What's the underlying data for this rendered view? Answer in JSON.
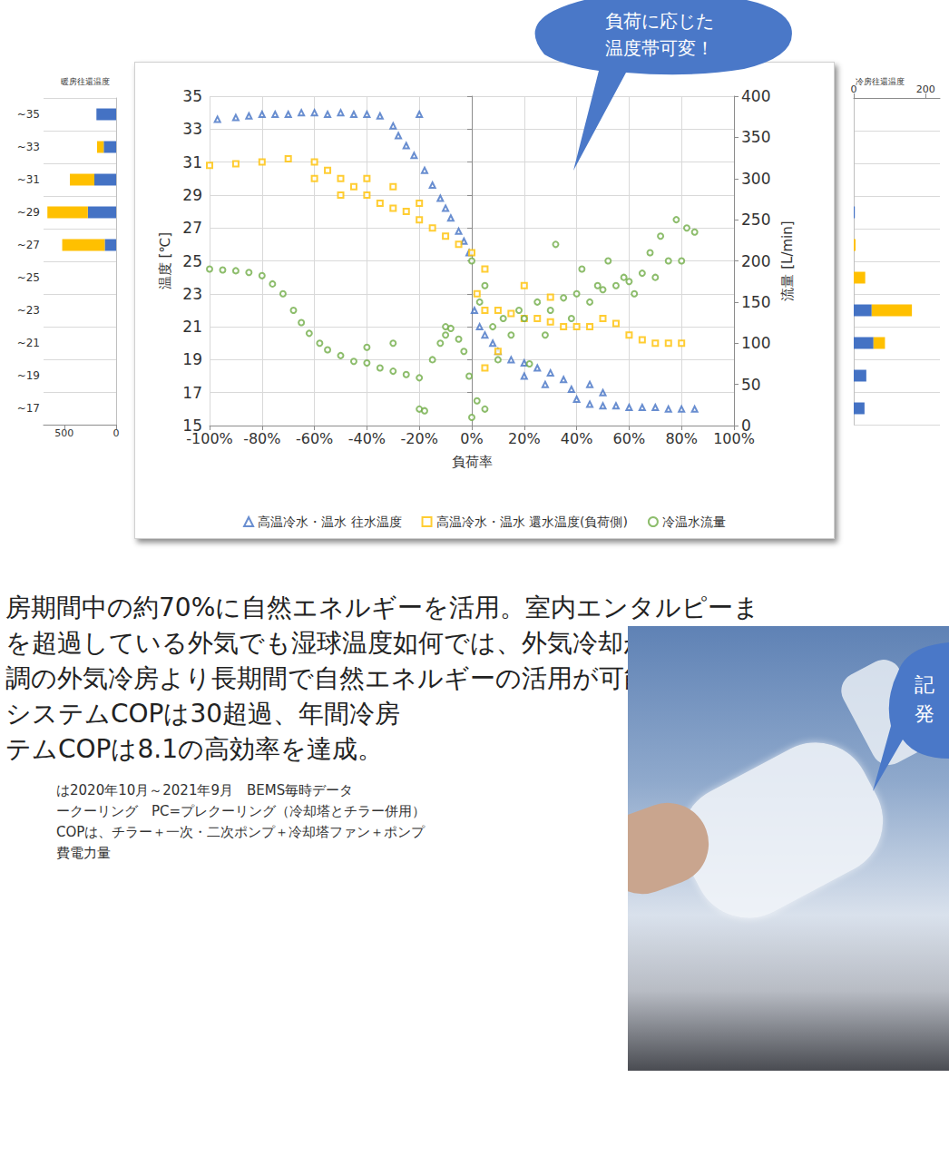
{
  "chart_data": [
    {
      "type": "scatter",
      "xlabel": "負荷率",
      "ylabel": "温度 [℃]",
      "y2label": "流量 [L/min]",
      "xlim": [
        -100,
        100
      ],
      "xticks": [
        {
          "value": -100,
          "label": "-100%"
        },
        {
          "value": -80,
          "label": "-80%"
        },
        {
          "value": -60,
          "label": "-60%"
        },
        {
          "value": -40,
          "label": "-40%"
        },
        {
          "value": -20,
          "label": "-20%"
        },
        {
          "value": 0,
          "label": "0%"
        },
        {
          "value": 20,
          "label": "20%"
        },
        {
          "value": 40,
          "label": "40%"
        },
        {
          "value": 60,
          "label": "60%"
        },
        {
          "value": 80,
          "label": "80%"
        },
        {
          "value": 100,
          "label": "100%"
        }
      ],
      "ylim": [
        15,
        35
      ],
      "yticks": [
        15,
        17,
        19,
        21,
        23,
        25,
        27,
        29,
        31,
        33,
        35
      ],
      "y2lim": [
        0,
        400
      ],
      "y2ticks": [
        0,
        50,
        100,
        150,
        200,
        250,
        300,
        350,
        400
      ],
      "grid": true,
      "legend": "bottom",
      "series": [
        {
          "name": "高温冷水・温水 往水温度",
          "color": "#4472c4",
          "marker": "triangle",
          "values": [
            [
              -97,
              33.6
            ],
            [
              -90,
              33.7
            ],
            [
              -85,
              33.8
            ],
            [
              -80,
              33.9
            ],
            [
              -75,
              33.9
            ],
            [
              -70,
              33.9
            ],
            [
              -65,
              34
            ],
            [
              -60,
              34
            ],
            [
              -55,
              33.9
            ],
            [
              -50,
              34
            ],
            [
              -45,
              33.9
            ],
            [
              -40,
              33.9
            ],
            [
              -35,
              33.8
            ],
            [
              -30,
              33.2
            ],
            [
              -28,
              32.6
            ],
            [
              -25,
              32
            ],
            [
              -22,
              31.4
            ],
            [
              -20,
              33.9
            ],
            [
              -18,
              30.5
            ],
            [
              -15,
              29.6
            ],
            [
              -12,
              28.8
            ],
            [
              -10,
              28.2
            ],
            [
              -8,
              27.6
            ],
            [
              -5,
              26.8
            ],
            [
              -3,
              26.2
            ],
            [
              -1,
              25.5
            ],
            [
              1,
              22
            ],
            [
              3,
              21
            ],
            [
              5,
              20.5
            ],
            [
              8,
              20
            ],
            [
              10,
              19.5
            ],
            [
              15,
              19
            ],
            [
              20,
              18.8
            ],
            [
              20,
              18
            ],
            [
              25,
              18.5
            ],
            [
              28,
              17.5
            ],
            [
              30,
              18.2
            ],
            [
              35,
              17.8
            ],
            [
              38,
              17.2
            ],
            [
              40,
              16.6
            ],
            [
              45,
              16.3
            ],
            [
              45,
              17.5
            ],
            [
              50,
              16.2
            ],
            [
              50,
              17
            ],
            [
              55,
              16.2
            ],
            [
              60,
              16.1
            ],
            [
              65,
              16.1
            ],
            [
              70,
              16.1
            ],
            [
              75,
              16
            ],
            [
              80,
              16
            ],
            [
              85,
              16
            ]
          ]
        },
        {
          "name": "高温冷水・温水 還水温度(負荷側)",
          "color": "#ffc000",
          "marker": "square",
          "values": [
            [
              -100,
              30.8
            ],
            [
              -90,
              30.9
            ],
            [
              -80,
              31
            ],
            [
              -70,
              31.2
            ],
            [
              -60,
              31
            ],
            [
              -60,
              30
            ],
            [
              -55,
              30.5
            ],
            [
              -50,
              30
            ],
            [
              -50,
              29
            ],
            [
              -45,
              29.5
            ],
            [
              -40,
              29
            ],
            [
              -40,
              30
            ],
            [
              -35,
              28.5
            ],
            [
              -30,
              28.2
            ],
            [
              -30,
              29.5
            ],
            [
              -25,
              28
            ],
            [
              -20,
              27.5
            ],
            [
              -20,
              28.5
            ],
            [
              -15,
              27
            ],
            [
              -10,
              26.5
            ],
            [
              -5,
              26
            ],
            [
              0,
              25.5
            ],
            [
              2,
              23
            ],
            [
              5,
              22
            ],
            [
              5,
              18.5
            ],
            [
              5,
              24.5
            ],
            [
              10,
              22
            ],
            [
              10,
              19.5
            ],
            [
              15,
              21.8
            ],
            [
              20,
              21.5
            ],
            [
              20,
              23.5
            ],
            [
              25,
              21.5
            ],
            [
              30,
              21.3
            ],
            [
              30,
              22.8
            ],
            [
              35,
              21
            ],
            [
              40,
              21
            ],
            [
              45,
              21
            ],
            [
              50,
              21.5
            ],
            [
              55,
              21.2
            ],
            [
              60,
              20.5
            ],
            [
              65,
              20.2
            ],
            [
              70,
              20
            ],
            [
              75,
              20
            ],
            [
              80,
              20
            ]
          ]
        },
        {
          "name": "冷温水流量",
          "color": "#70ad47",
          "marker": "circle",
          "axis": "y2",
          "values": [
            [
              -100,
              190
            ],
            [
              -95,
              189
            ],
            [
              -90,
              188
            ],
            [
              -85,
              186
            ],
            [
              -80,
              182
            ],
            [
              -76,
              172
            ],
            [
              -72,
              160
            ],
            [
              -68,
              140
            ],
            [
              -65,
              125
            ],
            [
              -62,
              112
            ],
            [
              -58,
              100
            ],
            [
              -55,
              92
            ],
            [
              -50,
              85
            ],
            [
              -45,
              78
            ],
            [
              -40,
              76
            ],
            [
              -40,
              95
            ],
            [
              -35,
              70
            ],
            [
              -30,
              66
            ],
            [
              -30,
              100
            ],
            [
              -25,
              62
            ],
            [
              -20,
              58
            ],
            [
              -20,
              20
            ],
            [
              -18,
              18
            ],
            [
              -15,
              80
            ],
            [
              -12,
              100
            ],
            [
              -10,
              110
            ],
            [
              -10,
              120
            ],
            [
              -8,
              118
            ],
            [
              -5,
              105
            ],
            [
              -3,
              90
            ],
            [
              -1,
              60
            ],
            [
              0,
              10
            ],
            [
              0,
              200
            ],
            [
              2,
              30
            ],
            [
              3,
              150
            ],
            [
              5,
              20
            ],
            [
              5,
              170
            ],
            [
              8,
              120
            ],
            [
              10,
              80
            ],
            [
              12,
              130
            ],
            [
              15,
              110
            ],
            [
              18,
              140
            ],
            [
              20,
              130
            ],
            [
              22,
              75
            ],
            [
              25,
              150
            ],
            [
              28,
              110
            ],
            [
              30,
              140
            ],
            [
              32,
              220
            ],
            [
              35,
              155
            ],
            [
              38,
              130
            ],
            [
              40,
              160
            ],
            [
              42,
              190
            ],
            [
              45,
              150
            ],
            [
              48,
              170
            ],
            [
              50,
              165
            ],
            [
              52,
              200
            ],
            [
              55,
              170
            ],
            [
              58,
              180
            ],
            [
              60,
              175
            ],
            [
              62,
              160
            ],
            [
              65,
              185
            ],
            [
              68,
              210
            ],
            [
              70,
              180
            ],
            [
              72,
              230
            ],
            [
              75,
              200
            ],
            [
              78,
              250
            ],
            [
              80,
              200
            ],
            [
              82,
              240
            ],
            [
              85,
              235
            ]
          ]
        }
      ]
    },
    {
      "type": "bar",
      "title": "暖房往還温度",
      "orientation": "horizontal",
      "stacked": true,
      "grid": true,
      "categories": [
        "~35",
        "~33",
        "~31",
        "~29",
        "~27",
        "~25",
        "~23",
        "~21",
        "~19",
        "~17"
      ],
      "xlim": [
        700,
        0
      ],
      "xticks": [
        500,
        0
      ],
      "series": [
        {
          "color": "#4472c4",
          "values": [
            190,
            120,
            210,
            273,
            110,
            0,
            0,
            0,
            0,
            0
          ]
        },
        {
          "color": "#ffc000",
          "values": [
            0,
            64,
            236,
            390,
            410,
            0,
            0,
            0,
            0,
            0
          ]
        }
      ]
    },
    {
      "type": "bar",
      "title": "冷房往還温度",
      "orientation": "horizontal",
      "stacked": true,
      "grid": true,
      "categories": [
        null,
        null,
        null,
        null,
        null,
        null,
        null,
        null,
        null,
        null
      ],
      "xlim": [
        0,
        240
      ],
      "xticks": [
        0,
        200
      ],
      "series": [
        {
          "color": "#4472c4",
          "values": [
            0,
            0,
            0,
            3,
            0,
            0,
            50,
            55,
            35,
            30
          ]
        },
        {
          "color": "#ffc000",
          "values": [
            0,
            0,
            0,
            0,
            5,
            32,
            112,
            32,
            0,
            0
          ]
        }
      ]
    }
  ],
  "callouts": [
    {
      "lines": [
        "負荷に応じた",
        "温度帯可変！"
      ]
    },
    {
      "lines": [
        "記",
        "発"
      ]
    }
  ],
  "body_text": [
    "房期間中の約70%に自然エネルギーを活用。室内エンタルピーま",
    "を超過している外気でも湿球温度如何では、外気冷却がなされて",
    "調の外気冷房より長期間で自然エネルギーの活用が可能に。",
    "システムCOPは30超過、年間冷房",
    "テムCOPは8.1の高効率を達成。"
  ],
  "notes": [
    "は2020年10月～2021年9月　BEMS毎時データ",
    "ークーリング　PC=プレクーリング（冷却塔とチラー併用）",
    "COPは、チラー＋一次・二次ポンプ＋冷却塔ファン＋ポンプ",
    "費電力量"
  ]
}
